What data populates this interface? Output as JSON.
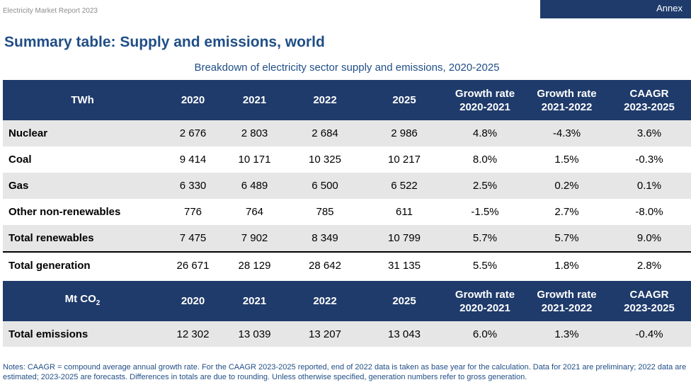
{
  "header": {
    "report_title": "Electricity Market Report 2023",
    "annex_label": "Annex"
  },
  "page_title": "Summary table: Supply and emissions, world",
  "subtitle": "Breakdown of electricity sector supply and emissions, 2020-2025",
  "supply_table": {
    "headers": [
      "TWh",
      "2020",
      "2021",
      "2022",
      "2025",
      "Growth rate\n2020-2021",
      "Growth rate\n2021-2022",
      "CAAGR\n2023-2025"
    ],
    "headers_line": {
      "g1a": "Growth rate",
      "g1b": "2020-2021",
      "g2a": "Growth rate",
      "g2b": "2021-2022",
      "g3a": "CAAGR",
      "g3b": "2023-2025"
    },
    "rows": [
      {
        "label": "Nuclear",
        "v2020": "2 676",
        "v2021": "2 803",
        "v2022": "2 684",
        "v2025": "2 986",
        "g1": "4.8%",
        "g2": "-4.3%",
        "g3": "3.6%"
      },
      {
        "label": "Coal",
        "v2020": "9 414",
        "v2021": "10 171",
        "v2022": "10 325",
        "v2025": "10 217",
        "g1": "8.0%",
        "g2": "1.5%",
        "g3": "-0.3%"
      },
      {
        "label": "Gas",
        "v2020": "6 330",
        "v2021": "6 489",
        "v2022": "6 500",
        "v2025": "6 522",
        "g1": "2.5%",
        "g2": "0.2%",
        "g3": "0.1%"
      },
      {
        "label": "Other non-renewables",
        "v2020": "776",
        "v2021": "764",
        "v2022": "785",
        "v2025": "611",
        "g1": "-1.5%",
        "g2": "2.7%",
        "g3": "-8.0%"
      },
      {
        "label": "Total renewables",
        "v2020": "7 475",
        "v2021": "7 902",
        "v2022": "8 349",
        "v2025": "10 799",
        "g1": "5.7%",
        "g2": "5.7%",
        "g3": "9.0%"
      },
      {
        "label": "Total generation",
        "v2020": "26 671",
        "v2021": "28 129",
        "v2022": "28 642",
        "v2025": "31 135",
        "g1": "5.5%",
        "g2": "1.8%",
        "g3": "2.8%"
      }
    ]
  },
  "emissions_table": {
    "unit_label": "Mt CO",
    "unit_sub": "2",
    "years": [
      "2020",
      "2021",
      "2022",
      "2025"
    ],
    "growth_headers": {
      "g1a": "Growth rate",
      "g1b": "2020-2021",
      "g2a": "Growth rate",
      "g2b": "2021-2022",
      "g3a": "CAAGR",
      "g3b": "2023-2025"
    },
    "rows": [
      {
        "label": "Total emissions",
        "v2020": "12 302",
        "v2021": "13 039",
        "v2022": "13 207",
        "v2025": "13 043",
        "g1": "6.0%",
        "g2": "1.3%",
        "g3": "-0.4%"
      }
    ]
  },
  "notes": "Notes: CAAGR = compound average annual growth rate. For the CAAGR 2023-2025 reported, end of 2022 data is taken as base year for the calculation. Data for 2021 are preliminary; 2022 data are estimated; 2023-2025 are forecasts. Differences in totals are due to rounding. Unless otherwise specified, generation numbers refer to gross generation.",
  "colors": {
    "header_bg": "#1f3b6b",
    "title_blue": "#1f4e86",
    "row_shade": "#e6e6e6"
  }
}
